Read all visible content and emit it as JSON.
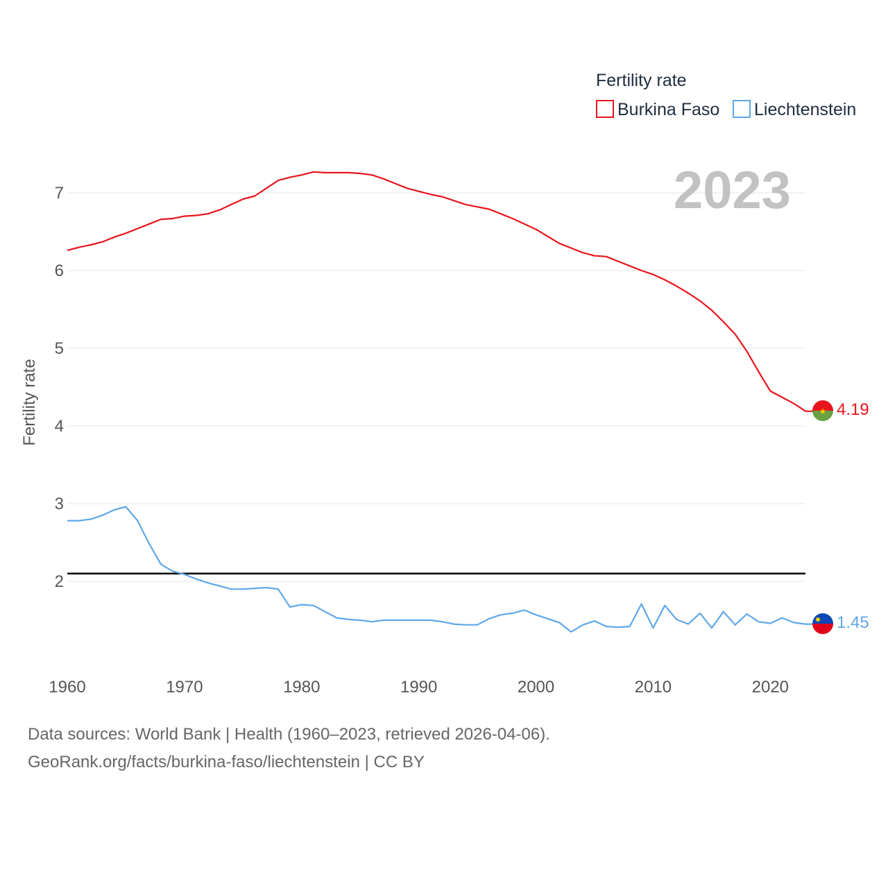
{
  "chart_data": {
    "type": "line",
    "legend_title": "Fertility rate",
    "year_label": "2023",
    "ylabel": "Fertility rate",
    "xlim": [
      1960,
      2023
    ],
    "ylim": [
      1.0,
      7.6
    ],
    "xticks": [
      1960,
      1970,
      1980,
      1990,
      2000,
      2010,
      2020
    ],
    "yticks": [
      2,
      3,
      4,
      5,
      6,
      7
    ],
    "reference_line": 2.1,
    "x": [
      1960,
      1961,
      1962,
      1963,
      1964,
      1965,
      1966,
      1967,
      1968,
      1969,
      1970,
      1971,
      1972,
      1973,
      1974,
      1975,
      1976,
      1977,
      1978,
      1979,
      1980,
      1981,
      1982,
      1983,
      1984,
      1985,
      1986,
      1987,
      1988,
      1989,
      1990,
      1991,
      1992,
      1993,
      1994,
      1995,
      1996,
      1997,
      1998,
      1999,
      2000,
      2001,
      2002,
      2003,
      2004,
      2005,
      2006,
      2007,
      2008,
      2009,
      2010,
      2011,
      2012,
      2013,
      2014,
      2015,
      2016,
      2017,
      2018,
      2019,
      2020,
      2021,
      2022,
      2023
    ],
    "series": [
      {
        "name": "Burkina Faso",
        "color": "#e8141c",
        "end_label": "4.19",
        "values": [
          6.26,
          6.3,
          6.33,
          6.37,
          6.43,
          6.48,
          6.54,
          6.6,
          6.66,
          6.67,
          6.7,
          6.71,
          6.73,
          6.78,
          6.85,
          6.92,
          6.96,
          7.06,
          7.16,
          7.2,
          7.23,
          7.27,
          7.26,
          7.26,
          7.26,
          7.25,
          7.23,
          7.18,
          7.12,
          7.06,
          7.02,
          6.98,
          6.95,
          6.9,
          6.85,
          6.82,
          6.79,
          6.73,
          6.67,
          6.6,
          6.53,
          6.44,
          6.35,
          6.29,
          6.23,
          6.19,
          6.18,
          6.12,
          6.06,
          6.0,
          5.95,
          5.88,
          5.8,
          5.71,
          5.61,
          5.49,
          5.34,
          5.18,
          4.96,
          4.7,
          4.45,
          4.37,
          4.29,
          4.19
        ]
      },
      {
        "name": "Liechtenstein",
        "color": "#5ea7e8",
        "end_label": "1.45",
        "values": [
          2.78,
          2.78,
          2.8,
          2.85,
          2.92,
          2.96,
          2.78,
          2.48,
          2.22,
          2.13,
          2.09,
          2.03,
          1.98,
          1.94,
          1.9,
          1.9,
          1.91,
          1.92,
          1.9,
          1.67,
          1.7,
          1.69,
          1.61,
          1.53,
          1.51,
          1.5,
          1.48,
          1.5,
          1.5,
          1.5,
          1.5,
          1.5,
          1.48,
          1.45,
          1.44,
          1.44,
          1.52,
          1.57,
          1.59,
          1.63,
          1.57,
          1.52,
          1.47,
          1.35,
          1.44,
          1.49,
          1.42,
          1.41,
          1.42,
          1.71,
          1.4,
          1.69,
          1.51,
          1.45,
          1.59,
          1.4,
          1.61,
          1.44,
          1.58,
          1.48,
          1.46,
          1.53,
          1.47,
          1.45
        ]
      }
    ]
  },
  "source": {
    "line1": "Data sources: World Bank | Health (1960–2023, retrieved 2026-04-06).",
    "line2": "GeoRank.org/facts/burkina-faso/liechtenstein | CC BY"
  }
}
